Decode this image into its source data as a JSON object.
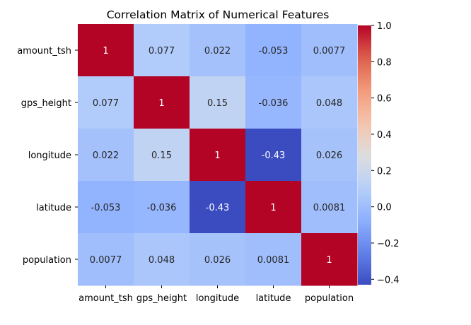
{
  "chart_data": {
    "type": "heatmap",
    "title": "Correlation Matrix of Numerical Features",
    "xlabel": "",
    "ylabel": "",
    "row_labels": [
      "amount_tsh",
      "gps_height",
      "longitude",
      "latitude",
      "population"
    ],
    "col_labels": [
      "amount_tsh",
      "gps_height",
      "longitude",
      "latitude",
      "population"
    ],
    "values": [
      [
        1,
        0.077,
        0.022,
        -0.053,
        0.0077
      ],
      [
        0.077,
        1,
        0.15,
        -0.036,
        0.048
      ],
      [
        0.022,
        0.15,
        1,
        -0.43,
        0.026
      ],
      [
        -0.053,
        -0.036,
        -0.43,
        1,
        0.0081
      ],
      [
        0.0077,
        0.048,
        0.026,
        0.0081,
        1
      ]
    ],
    "cell_text": [
      [
        "1",
        "0.077",
        "0.022",
        "-0.053",
        "0.0077"
      ],
      [
        "0.077",
        "1",
        "0.15",
        "-0.036",
        "0.048"
      ],
      [
        "0.022",
        "0.15",
        "1",
        "-0.43",
        "0.026"
      ],
      [
        "-0.053",
        "-0.036",
        "-0.43",
        "1",
        "0.0081"
      ],
      [
        "0.0077",
        "0.048",
        "0.026",
        "0.0081",
        "1"
      ]
    ],
    "colormap": "coolwarm",
    "vmin": -0.43,
    "vmax": 1.0,
    "colorbar": {
      "ticks": [
        1.0,
        0.8,
        0.6,
        0.4,
        0.2,
        0.0,
        -0.2,
        -0.4
      ],
      "tick_labels": [
        "1.0",
        "0.8",
        "0.6",
        "0.4",
        "0.2",
        "0.0",
        "−0.2",
        "−0.4"
      ],
      "placement": "right"
    },
    "grid": false,
    "legend": "none"
  }
}
